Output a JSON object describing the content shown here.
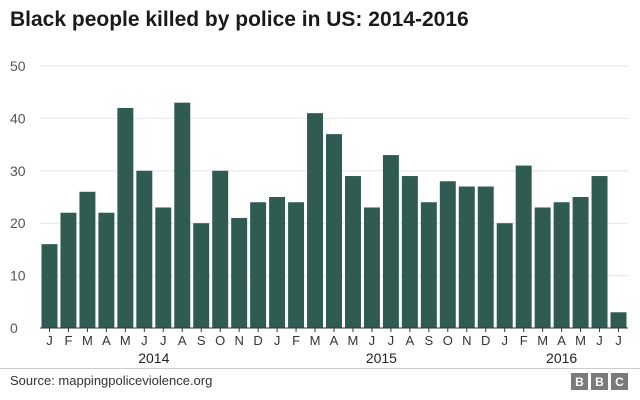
{
  "title": "Black people killed by police in US: 2014-2016",
  "source": "Source: mappingpoliceviolence.org",
  "logo": [
    "B",
    "B",
    "C"
  ],
  "colors": {
    "bar": "#2f5b53",
    "grid": "#e6e6e6",
    "axis": "#333333"
  },
  "chart_data": {
    "type": "bar",
    "title": "Black people killed by police in US: 2014-2016",
    "categories": [
      "J",
      "F",
      "M",
      "A",
      "M",
      "J",
      "J",
      "A",
      "S",
      "O",
      "N",
      "D",
      "J",
      "F",
      "M",
      "A",
      "M",
      "J",
      "J",
      "A",
      "S",
      "O",
      "N",
      "D",
      "J",
      "F",
      "M",
      "A",
      "M",
      "J",
      "J"
    ],
    "values": [
      16,
      22,
      26,
      22,
      42,
      30,
      23,
      43,
      20,
      30,
      21,
      24,
      25,
      24,
      41,
      37,
      29,
      23,
      33,
      29,
      24,
      28,
      27,
      27,
      20,
      31,
      23,
      24,
      25,
      29,
      3
    ],
    "years": [
      {
        "label": "2014",
        "start": 0,
        "end": 11
      },
      {
        "label": "2015",
        "start": 12,
        "end": 23
      },
      {
        "label": "2016",
        "start": 24,
        "end": 30
      }
    ],
    "yticks": [
      0,
      10,
      20,
      30,
      40,
      50
    ],
    "ylim": [
      0,
      50
    ],
    "xlabel": "",
    "ylabel": "",
    "grid": true
  }
}
